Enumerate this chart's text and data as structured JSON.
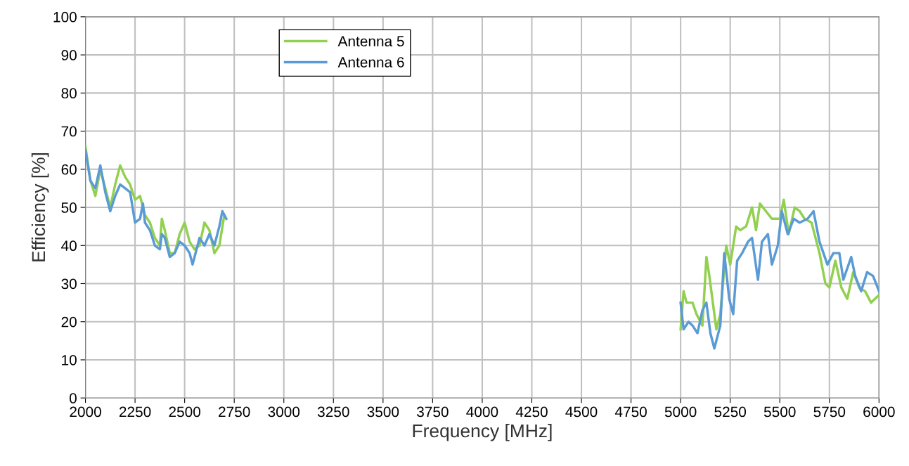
{
  "chart_data": {
    "type": "line",
    "xlabel": "Frequency [MHz]",
    "ylabel": "Efficiency [%]",
    "xlim": [
      2000,
      6000
    ],
    "xticks": [
      2000,
      2250,
      2500,
      2750,
      3000,
      3250,
      3500,
      3750,
      4000,
      4250,
      4500,
      4750,
      5000,
      5250,
      5500,
      5750,
      6000
    ],
    "ylim": [
      0,
      100
    ],
    "yticks": [
      0,
      10,
      20,
      30,
      40,
      50,
      60,
      70,
      80,
      90,
      100
    ],
    "grid": true,
    "legend": "top left",
    "marker": "none",
    "line_style": "solid",
    "series": [
      {
        "name": "Antenna 5",
        "color": "#92d050",
        "x": [
          2000,
          2025,
          2050,
          2075,
          2100,
          2125,
          2150,
          2175,
          2200,
          2225,
          2250,
          2275,
          2290,
          2300,
          2325,
          2350,
          2375,
          2385,
          2400,
          2425,
          2450,
          2475,
          2500,
          2525,
          2550,
          2575,
          2600,
          2625,
          2650,
          2675,
          2700,
          3500,
          5000,
          5015,
          5030,
          5060,
          5080,
          5110,
          5130,
          5145,
          5180,
          5200,
          5230,
          5250,
          5280,
          5300,
          5330,
          5360,
          5380,
          5400,
          5430,
          5460,
          5500,
          5520,
          5545,
          5575,
          5600,
          5625,
          5660,
          5700,
          5730,
          5750,
          5780,
          5810,
          5840,
          5870,
          5900,
          5930,
          5960,
          6000
        ],
        "values": [
          66,
          57,
          53,
          60,
          55,
          50,
          56,
          61,
          58,
          56,
          52,
          53,
          50,
          48,
          46,
          42,
          40,
          47,
          44,
          38,
          38,
          43,
          46,
          41,
          39,
          40,
          46,
          44,
          38,
          40,
          48,
          null,
          18,
          28,
          25,
          25,
          22,
          19,
          37,
          32,
          18,
          22,
          40,
          35,
          45,
          44,
          45,
          50,
          44,
          51,
          49,
          47,
          47,
          52,
          43,
          50,
          49,
          47,
          46,
          38,
          30,
          29,
          36,
          29,
          26,
          33,
          29,
          28,
          25,
          27
        ]
      },
      {
        "name": "Antenna 6",
        "color": "#5b9bd5",
        "x": [
          2000,
          2025,
          2050,
          2075,
          2100,
          2125,
          2150,
          2175,
          2200,
          2225,
          2250,
          2275,
          2290,
          2300,
          2325,
          2350,
          2375,
          2385,
          2400,
          2425,
          2450,
          2475,
          2500,
          2525,
          2540,
          2560,
          2575,
          2600,
          2625,
          2650,
          2675,
          2690,
          2710,
          3500,
          5000,
          5015,
          5040,
          5060,
          5085,
          5110,
          5130,
          5150,
          5170,
          5200,
          5220,
          5245,
          5265,
          5285,
          5310,
          5340,
          5360,
          5390,
          5410,
          5440,
          5460,
          5490,
          5510,
          5540,
          5570,
          5600,
          5640,
          5670,
          5700,
          5740,
          5770,
          5800,
          5820,
          5860,
          5880,
          5910,
          5940,
          5970,
          6000
        ],
        "values": [
          65,
          57,
          55,
          61,
          54,
          49,
          53,
          56,
          55,
          54,
          46,
          47,
          51,
          46,
          44,
          40,
          39,
          43,
          42,
          37,
          38,
          41,
          40,
          38,
          35,
          39,
          42,
          40,
          43,
          40,
          45,
          49,
          47,
          null,
          25,
          18,
          20,
          19,
          17,
          23,
          25,
          17,
          13,
          19,
          38,
          26,
          22,
          36,
          38,
          41,
          42,
          31,
          41,
          43,
          35,
          40,
          49,
          43,
          47,
          46,
          47,
          49,
          41,
          35,
          38,
          38,
          31,
          37,
          32,
          28,
          33,
          32,
          28
        ]
      }
    ]
  }
}
